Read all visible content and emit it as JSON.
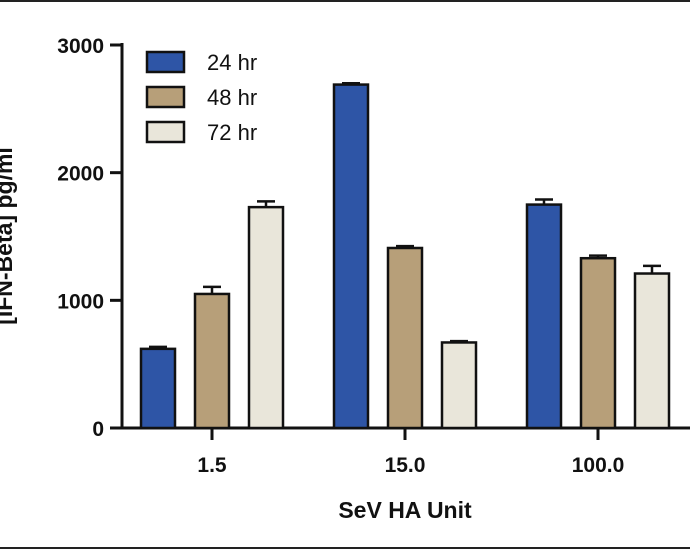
{
  "chart_data": {
    "type": "bar",
    "title": "",
    "xlabel": "SeV HA Unit",
    "ylabel": "[IFN-Beta] pg/ml",
    "ylim": [
      0,
      3000
    ],
    "yticks": [
      0,
      1000,
      2000,
      3000
    ],
    "categories": [
      "1.5",
      "15.0",
      "100.0"
    ],
    "series": [
      {
        "name": "24 hr",
        "color": "#2e55a6",
        "values": [
          620,
          2690,
          1750
        ],
        "errors": [
          15,
          10,
          40
        ]
      },
      {
        "name": "48 hr",
        "color": "#b79f79",
        "values": [
          1050,
          1410,
          1330
        ],
        "errors": [
          55,
          15,
          20
        ]
      },
      {
        "name": "72 hr",
        "color": "#e9e6da",
        "values": [
          1730,
          670,
          1210
        ],
        "errors": [
          45,
          10,
          60
        ]
      }
    ],
    "legend_position": "top-left",
    "grid": false
  }
}
